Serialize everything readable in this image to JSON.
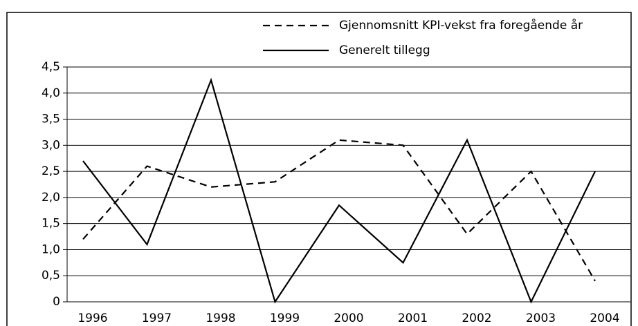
{
  "chart_data": {
    "type": "line",
    "categories": [
      "1996",
      "1997",
      "1998",
      "1999",
      "2000",
      "2001",
      "2002",
      "2003",
      "2004"
    ],
    "series": [
      {
        "name": "Gjennomsnitt KPI-vekst fra foregående år",
        "color": "#000000",
        "dash": true,
        "values": [
          1.2,
          2.6,
          2.2,
          2.3,
          3.1,
          3.0,
          1.3,
          2.5,
          0.4
        ]
      },
      {
        "name": "Generelt tillegg",
        "color": "#000000",
        "dash": false,
        "values": [
          2.7,
          1.1,
          4.25,
          0,
          1.85,
          0.75,
          3.1,
          0,
          2.5
        ]
      }
    ],
    "ylim": [
      0,
      4.5
    ],
    "yticks": [
      0,
      {
        "value": 0.5,
        "label": "0,5"
      },
      {
        "value": 1.0,
        "label": "1,0"
      },
      {
        "value": 1.5,
        "label": "1,5"
      },
      {
        "value": 2.0,
        "label": "2,0"
      },
      {
        "value": 2.5,
        "label": "2,5"
      },
      {
        "value": 3.0,
        "label": "3,0"
      },
      {
        "value": 3.5,
        "label": "3,5"
      },
      {
        "value": 4.0,
        "label": "4,0"
      },
      {
        "value": 4.5,
        "label": "4,5"
      }
    ],
    "grid": true,
    "legend": "top-right"
  }
}
